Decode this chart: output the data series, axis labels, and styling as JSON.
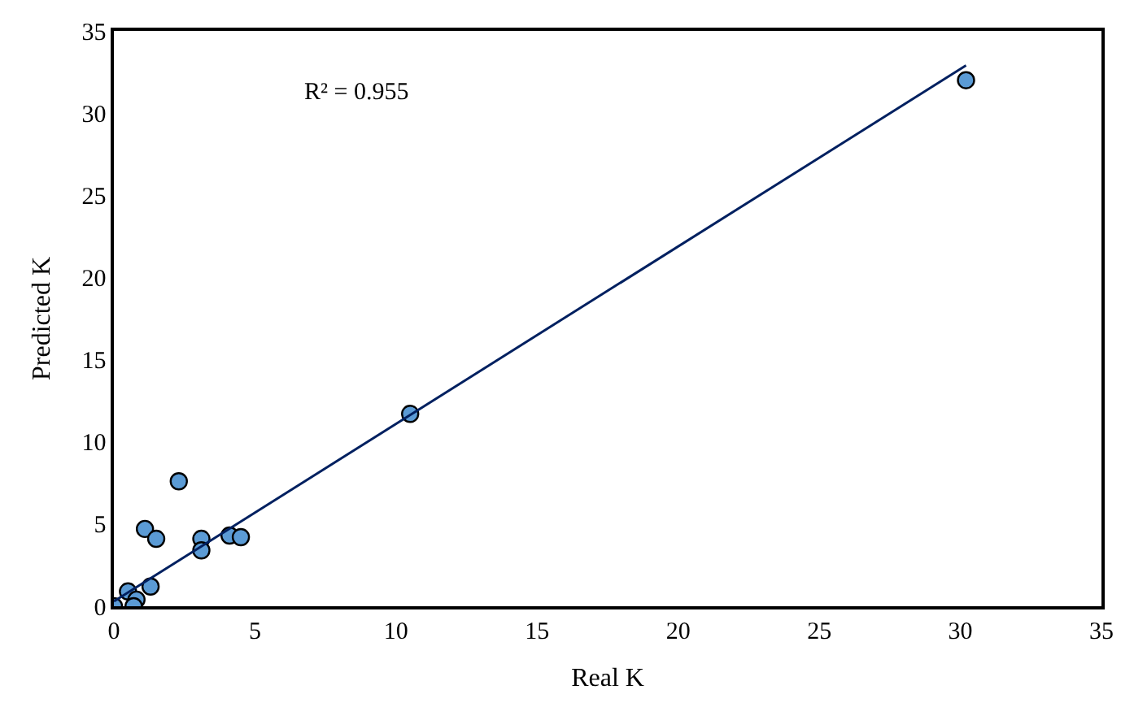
{
  "chart_data": {
    "type": "scatter",
    "xlabel": "Real K",
    "ylabel": "Predicted K",
    "annotations": [
      "R² = 0.955"
    ],
    "xlim": [
      0,
      35
    ],
    "ylim": [
      0,
      35
    ],
    "xticks": [
      0,
      5,
      10,
      15,
      20,
      25,
      30,
      35
    ],
    "yticks": [
      0,
      5,
      10,
      15,
      20,
      25,
      30,
      35
    ],
    "grid": false,
    "marker": "circle",
    "series": [
      {
        "color": "#5b9bd5",
        "x": [
          30.2,
          10.5,
          2.3,
          1.1,
          1.5,
          3.1,
          3.1,
          4.1,
          4.5,
          1.3,
          0.5,
          0.8,
          0.0,
          0.7
        ],
        "values": [
          32.0,
          11.7,
          7.6,
          4.7,
          4.1,
          4.1,
          3.4,
          4.3,
          4.2,
          1.2,
          0.9,
          0.4,
          0.0,
          0.0
        ]
      },
      {
        "type": "line",
        "color": "#002060",
        "marker": "none",
        "x": [
          0,
          30.2
        ],
        "values": [
          0.3,
          32.9
        ]
      }
    ]
  }
}
